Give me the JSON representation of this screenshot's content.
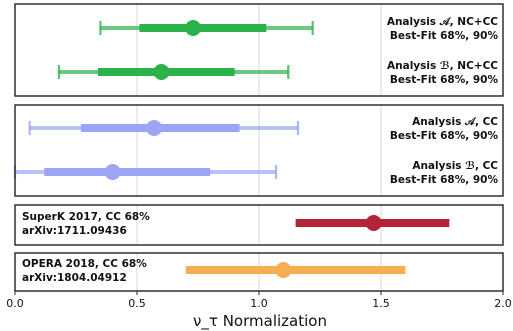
{
  "chart_data": {
    "type": "forest",
    "xlabel": "ν_τ Normalization",
    "xlim": [
      0.0,
      2.0
    ],
    "xticks": [
      "0.0",
      "0.5",
      "1.0",
      "1.5",
      "2.0"
    ],
    "xtick_values": [
      0.0,
      0.5,
      1.0,
      1.5,
      2.0
    ],
    "grid": "vertical",
    "panels": [
      {
        "rows": [
          {
            "label_line1": "Analysis 𝒜, NC+CC",
            "label_line2": "Best-Fit 68%, 90%",
            "best_fit": 0.73,
            "ci68": [
              0.51,
              1.03
            ],
            "ci90": [
              0.35,
              1.22
            ],
            "color": "#2cb24a"
          },
          {
            "label_line1": "Analysis ℬ, NC+CC",
            "label_line2": "Best-Fit 68%, 90%",
            "best_fit": 0.6,
            "ci68": [
              0.34,
              0.9
            ],
            "ci90": [
              0.18,
              1.12
            ],
            "color": "#2cb24a"
          }
        ]
      },
      {
        "rows": [
          {
            "label_line1": "Analysis 𝒜, CC",
            "label_line2": "Best-Fit 68%, 90%",
            "best_fit": 0.57,
            "ci68": [
              0.27,
              0.92
            ],
            "ci90": [
              0.06,
              1.16
            ],
            "color": "#9aa6f4"
          },
          {
            "label_line1": "Analysis ℬ, CC",
            "label_line2": "Best-Fit 68%, 90%",
            "best_fit": 0.4,
            "ci68": [
              0.12,
              0.8
            ],
            "ci90": [
              0.0,
              1.07
            ],
            "color": "#9aa6f4"
          }
        ]
      },
      {
        "rows": [
          {
            "label_line1": "SuperK 2017, CC 68%",
            "label_line2": "arXiv:1711.09436",
            "best_fit": 1.47,
            "ci68": [
              1.15,
              1.78
            ],
            "ci90": null,
            "color": "#b32436"
          }
        ]
      },
      {
        "rows": [
          {
            "label_line1": "OPERA 2018, CC 68%",
            "label_line2": "arXiv:1804.04912",
            "best_fit": 1.1,
            "ci68": [
              0.7,
              1.6
            ],
            "ci90": null,
            "color": "#f6ae52"
          }
        ]
      }
    ]
  }
}
